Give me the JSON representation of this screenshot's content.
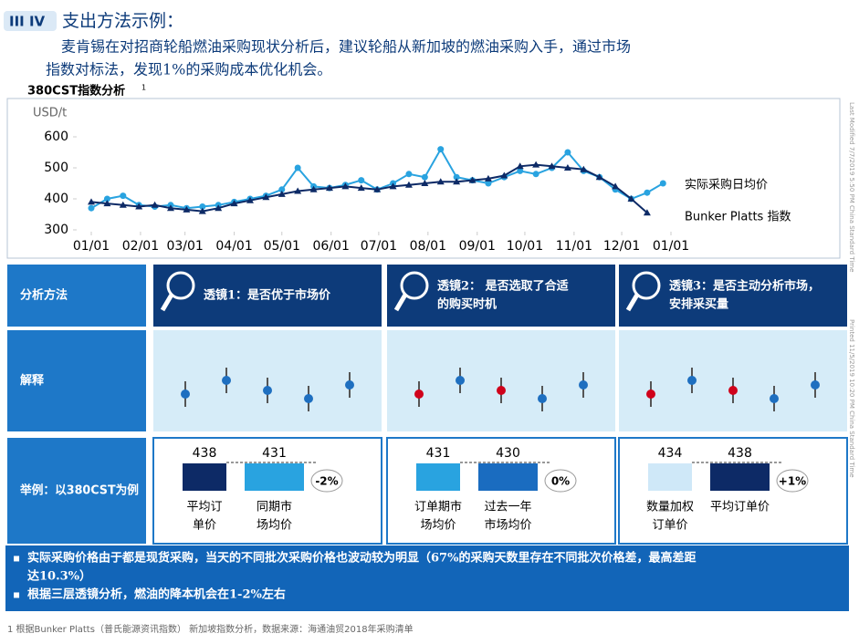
{
  "header": {
    "badge": "III IV",
    "title": "支出方法示例：",
    "intro": [
      "麦肯锡在对招商轮船燃油采购现状分析后，建议轮船从新加坡的燃油采购入手，通过市场",
      "指数对标法，发现1%的采购成本优化机会。"
    ]
  },
  "chart_data": {
    "type": "line",
    "title": "380CST指数分析",
    "title_note": "1",
    "ylabel": "USD/t",
    "xlim": [
      0,
      365
    ],
    "ylim": [
      300,
      600
    ],
    "yticks": [
      300,
      400,
      500,
      600
    ],
    "xticks": [
      {
        "value": 0,
        "label": "01/01"
      },
      {
        "value": 31,
        "label": "02/01"
      },
      {
        "value": 59,
        "label": "03/01"
      },
      {
        "value": 90,
        "label": "04/01"
      },
      {
        "value": 120,
        "label": "05/01"
      },
      {
        "value": 151,
        "label": "06/01"
      },
      {
        "value": 181,
        "label": "07/01"
      },
      {
        "value": 212,
        "label": "08/01"
      },
      {
        "value": 243,
        "label": "09/01"
      },
      {
        "value": 273,
        "label": "10/01"
      },
      {
        "value": 304,
        "label": "11/01"
      },
      {
        "value": 334,
        "label": "12/01"
      },
      {
        "value": 365,
        "label": "01/01"
      }
    ],
    "x": [
      0,
      10,
      20,
      30,
      40,
      50,
      60,
      70,
      80,
      90,
      100,
      110,
      120,
      130,
      140,
      150,
      160,
      170,
      180,
      190,
      200,
      210,
      220,
      230,
      240,
      250,
      260,
      270,
      280,
      290,
      300,
      310,
      320,
      330,
      340,
      350,
      360
    ],
    "series": [
      {
        "name": "实际采购日均价",
        "color": "#29a3e0",
        "marker": "circle",
        "values": [
          370,
          400,
          410,
          380,
          375,
          380,
          370,
          375,
          380,
          390,
          400,
          410,
          430,
          500,
          440,
          435,
          445,
          460,
          430,
          450,
          480,
          470,
          560,
          470,
          460,
          450,
          470,
          490,
          480,
          500,
          550,
          490,
          470,
          430,
          400,
          420,
          450
        ]
      },
      {
        "name": "Bunker Platts 指数",
        "color": "#0d2a66",
        "marker": "triangle",
        "values": [
          390,
          385,
          380,
          375,
          380,
          370,
          365,
          360,
          370,
          385,
          395,
          405,
          415,
          425,
          430,
          435,
          440,
          435,
          430,
          440,
          445,
          450,
          455,
          455,
          460,
          465,
          475,
          505,
          510,
          505,
          500,
          495,
          470,
          440,
          400,
          355,
          null
        ]
      }
    ]
  },
  "side": [
    "Last Modified 7/7/2019 5:50 PM China Standard Time",
    "Printed 11/5/2019 10:20 PM China Standard Time"
  ],
  "rows": [
    "分析方法",
    "解释",
    "举例：以380CST为例"
  ],
  "lenses": [
    [
      "透镜1：是否优于市场价"
    ],
    [
      "透镜2： 是否选取了合适",
      "的购买时机"
    ],
    [
      "透镜3：是否主动分析市场，",
      "安排采买量"
    ]
  ],
  "examples": [
    {
      "values": [
        438,
        431
      ],
      "labels": [
        [
          "平均订",
          "单价"
        ],
        [
          "同期市",
          "场均价"
        ]
      ],
      "change": "-2%"
    },
    {
      "values": [
        431,
        430
      ],
      "labels": [
        [
          "订单期市",
          "场均价"
        ],
        [
          "过去一年",
          "市场均价"
        ]
      ],
      "change": "0%"
    },
    {
      "values": [
        434,
        438
      ],
      "labels": [
        [
          "数量加权",
          "订单价"
        ],
        [
          "平均订单价"
        ]
      ],
      "change": "+1%"
    }
  ],
  "notes": [
    [
      "实际采购价格由于都是现货采购，当天的不同批次采购价格也波动较为明显（67%的采购天数里存在不同批次价格差，最高差距",
      "达10.3%）"
    ],
    [
      "根据三层透镜分析，燃油的降本机会在1-2%左右"
    ]
  ],
  "footnote": "1 根据Bunker Platts（普氏能源资讯指数） 新加坡指数分析，数据来源：海通油贸2018年采购清单"
}
